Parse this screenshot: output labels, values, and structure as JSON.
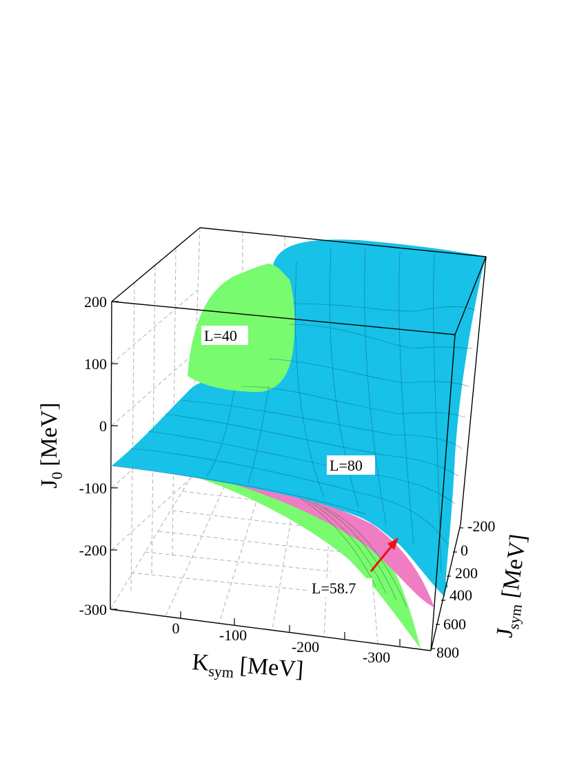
{
  "chart_data": {
    "type": "surface3d",
    "title": "",
    "x_axis": {
      "label": "K",
      "label_sub": "sym",
      "label_unit": "[MeV]",
      "ticks": [
        "0",
        "-100",
        "-200",
        "-300"
      ],
      "range": [
        100,
        -380
      ]
    },
    "y_axis": {
      "label": "J",
      "label_sub": "sym",
      "label_unit": "[MeV]",
      "ticks": [
        "-200",
        "0",
        "200",
        "400",
        "600",
        "800"
      ],
      "range": [
        -250,
        850
      ]
    },
    "z_axis": {
      "label": "J",
      "label_sub": "0",
      "label_unit": "[MeV]",
      "ticks": [
        "200",
        "100",
        "0",
        "-100",
        "-200",
        "-300"
      ],
      "range": [
        -300,
        200
      ]
    },
    "grid": true,
    "series": [
      {
        "name": "L=40",
        "color": "#78fb6e"
      },
      {
        "name": "L=58.7",
        "color": "#f07cc4"
      },
      {
        "name": "L=80",
        "color": "#17c1e8"
      }
    ],
    "annotations": [
      {
        "text": "L=40"
      },
      {
        "text": "L=80"
      },
      {
        "text": "L=58.7",
        "arrow_color": "#ee1111"
      }
    ]
  },
  "colors": {
    "surface_l40": "#78fb6e",
    "surface_l587": "#f07cc4",
    "surface_l80": "#17c1e8",
    "arrow": "#ee1111",
    "grid": "#aaaaaa"
  }
}
